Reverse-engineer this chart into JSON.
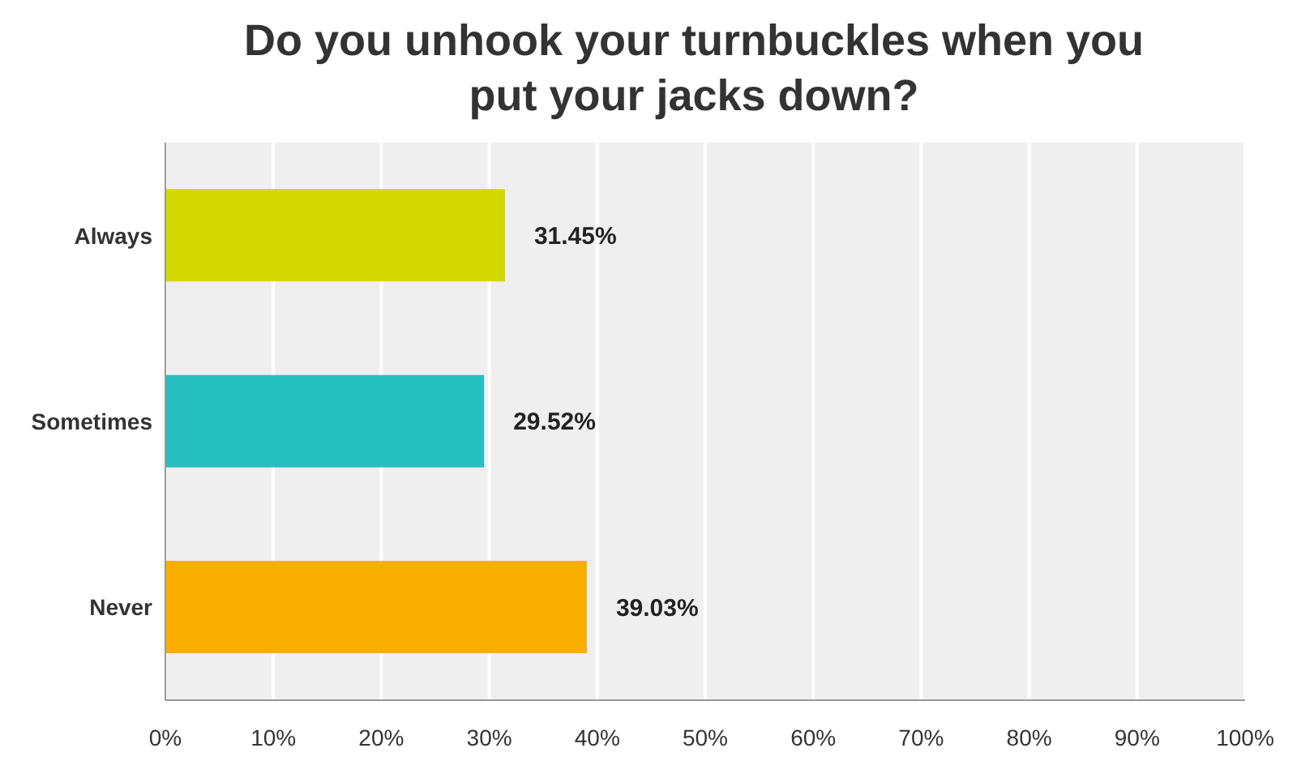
{
  "chart_data": {
    "type": "bar",
    "orientation": "horizontal",
    "title": "Do you unhook your turnbuckles when you put your jacks down?",
    "categories": [
      "Always",
      "Sometimes",
      "Never"
    ],
    "values": [
      31.45,
      29.52,
      39.03
    ],
    "colors": [
      "#d2d800",
      "#26bfbf",
      "#f9ae00"
    ],
    "value_labels": [
      "31.45%",
      "29.52%",
      "39.03%"
    ],
    "xlim": [
      0,
      100
    ],
    "xticks": [
      {
        "value": 0,
        "label": "0%"
      },
      {
        "value": 10,
        "label": "10%"
      },
      {
        "value": 20,
        "label": "20%"
      },
      {
        "value": 30,
        "label": "30%"
      },
      {
        "value": 40,
        "label": "40%"
      },
      {
        "value": 50,
        "label": "50%"
      },
      {
        "value": 60,
        "label": "60%"
      },
      {
        "value": 70,
        "label": "70%"
      },
      {
        "value": 80,
        "label": "80%"
      },
      {
        "value": 90,
        "label": "90%"
      },
      {
        "value": 100,
        "label": "100%"
      }
    ],
    "grid": "x",
    "legend": false
  }
}
